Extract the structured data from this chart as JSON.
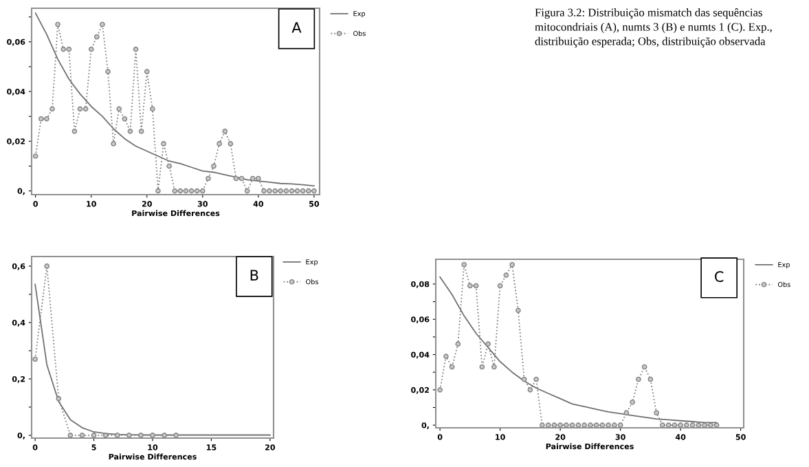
{
  "chart_data": [
    {
      "type": "line",
      "xlabel": "Pairwise Differences",
      "xlim": [
        -0.7,
        51
      ],
      "ylim": [
        -0.0015,
        0.0735
      ],
      "xticks": [
        0,
        10,
        20,
        30,
        40,
        50
      ],
      "yticks": [
        {
          "value": 0,
          "label": "0,"
        },
        {
          "value": 0.01,
          "label": null
        },
        {
          "value": 0.02,
          "label": "0,02"
        },
        {
          "value": 0.03,
          "label": null
        },
        {
          "value": 0.04,
          "label": "0,04"
        },
        {
          "value": 0.05,
          "label": null
        },
        {
          "value": 0.06,
          "label": "0,06"
        },
        {
          "value": 0.07,
          "label": null
        }
      ],
      "grid": false,
      "legend": "right",
      "annotations": [
        "A",
        "Figura 3.2: Distribuição mismatch das sequências mitocondriais (A), numts 3 (B) e numts 1 (C). Exp., distribuição esperada; Obs, distribuição observada"
      ],
      "series": [
        {
          "name": "Exp",
          "color": "#707070",
          "line_style": "solid",
          "marker": "none",
          "x": [
            0,
            2,
            4,
            6,
            8,
            10,
            12,
            14,
            16,
            18,
            20,
            22,
            24,
            26,
            28,
            30,
            32,
            34,
            36,
            38,
            40,
            42,
            44,
            46,
            48,
            50
          ],
          "values": [
            0.0715,
            0.063,
            0.053,
            0.045,
            0.039,
            0.034,
            0.03,
            0.025,
            0.021,
            0.018,
            0.016,
            0.014,
            0.012,
            0.011,
            0.0095,
            0.008,
            0.0075,
            0.0065,
            0.0055,
            0.0045,
            0.004,
            0.0035,
            0.003,
            0.0028,
            0.0025,
            0.002
          ]
        },
        {
          "name": "Obs",
          "color": "#808080",
          "line_style": "dotted",
          "marker": "circle",
          "x": [
            0,
            1,
            2,
            3,
            4,
            5,
            6,
            7,
            8,
            9,
            10,
            11,
            12,
            13,
            14,
            15,
            16,
            17,
            18,
            19,
            20,
            21,
            22,
            23,
            24,
            25,
            26,
            27,
            28,
            29,
            30,
            31,
            32,
            33,
            34,
            35,
            36,
            37,
            38,
            39,
            40,
            41,
            42,
            43,
            44,
            45,
            46,
            47,
            48,
            49,
            50
          ],
          "values": [
            0.014,
            0.029,
            0.029,
            0.033,
            0.067,
            0.057,
            0.057,
            0.024,
            0.033,
            0.033,
            0.057,
            0.062,
            0.067,
            0.048,
            0.019,
            0.033,
            0.029,
            0.024,
            0.057,
            0.024,
            0.048,
            0.033,
            0,
            0.019,
            0.01,
            0,
            0,
            0,
            0,
            0,
            0,
            0.005,
            0.01,
            0.019,
            0.024,
            0.019,
            0.005,
            0.005,
            0,
            0.005,
            0.005,
            0,
            0,
            0,
            0,
            0,
            0,
            0,
            0,
            0,
            0
          ]
        }
      ]
    },
    {
      "type": "line",
      "xlabel": "Pairwise Differences",
      "xlim": [
        -0.3,
        20.3
      ],
      "ylim": [
        -0.01,
        0.634
      ],
      "xticks": [
        0,
        5,
        10,
        15,
        20
      ],
      "yticks": [
        {
          "value": 0,
          "label": "0,"
        },
        {
          "value": 0.1,
          "label": null
        },
        {
          "value": 0.2,
          "label": "0,2"
        },
        {
          "value": 0.3,
          "label": null
        },
        {
          "value": 0.4,
          "label": "0,4"
        },
        {
          "value": 0.5,
          "label": null
        },
        {
          "value": 0.6,
          "label": "0,6"
        }
      ],
      "grid": false,
      "legend": "right",
      "annotations": [
        "B"
      ],
      "series": [
        {
          "name": "Exp",
          "color": "#707070",
          "line_style": "solid",
          "marker": "none",
          "x": [
            0,
            1,
            2,
            3,
            4,
            5,
            6,
            7,
            8,
            10,
            12,
            14,
            16,
            18,
            20
          ],
          "values": [
            0.535,
            0.25,
            0.12,
            0.055,
            0.027,
            0.012,
            0.006,
            0.003,
            0.002,
            0.001,
            0.001,
            0.001,
            0.001,
            0.001,
            0.001
          ]
        },
        {
          "name": "Obs",
          "color": "#808080",
          "line_style": "dotted",
          "marker": "circle",
          "x": [
            0,
            1,
            2,
            3,
            4,
            5,
            6,
            7,
            8,
            9,
            10,
            11,
            12
          ],
          "values": [
            0.27,
            0.6,
            0.13,
            0,
            0,
            0,
            0,
            0,
            0,
            0,
            0,
            0,
            0
          ]
        }
      ]
    },
    {
      "type": "line",
      "xlabel": "Pairwise Differences",
      "xlim": [
        -0.7,
        50.5
      ],
      "ylim": [
        -0.0015,
        0.094
      ],
      "xticks": [
        0,
        10,
        20,
        30,
        40,
        50
      ],
      "yticks": [
        {
          "value": 0,
          "label": "0,"
        },
        {
          "value": 0.01,
          "label": null
        },
        {
          "value": 0.02,
          "label": "0,02"
        },
        {
          "value": 0.03,
          "label": null
        },
        {
          "value": 0.04,
          "label": "0,04"
        },
        {
          "value": 0.05,
          "label": null
        },
        {
          "value": 0.06,
          "label": "0,06"
        },
        {
          "value": 0.07,
          "label": null
        },
        {
          "value": 0.08,
          "label": "0,08"
        }
      ],
      "grid": false,
      "legend": "right",
      "annotations": [
        "C"
      ],
      "series": [
        {
          "name": "Exp",
          "color": "#707070",
          "line_style": "solid",
          "marker": "none",
          "x": [
            0,
            2,
            4,
            6,
            8,
            10,
            12,
            14,
            16,
            18,
            20,
            22,
            24,
            26,
            28,
            30,
            32,
            34,
            36,
            38,
            40,
            42,
            44,
            46
          ],
          "values": [
            0.084,
            0.074,
            0.062,
            0.052,
            0.044,
            0.036,
            0.03,
            0.025,
            0.021,
            0.018,
            0.015,
            0.012,
            0.0105,
            0.009,
            0.0075,
            0.0065,
            0.0055,
            0.0045,
            0.0035,
            0.003,
            0.0025,
            0.002,
            0.0015,
            0.0015
          ]
        },
        {
          "name": "Obs",
          "color": "#808080",
          "line_style": "dotted",
          "marker": "circle",
          "x": [
            0,
            1,
            2,
            3,
            4,
            5,
            6,
            7,
            8,
            9,
            10,
            11,
            12,
            13,
            14,
            15,
            16,
            17,
            18,
            19,
            20,
            21,
            22,
            23,
            24,
            25,
            26,
            27,
            28,
            29,
            30,
            31,
            32,
            33,
            34,
            35,
            36,
            37,
            38,
            39,
            40,
            41,
            42,
            43,
            44,
            45,
            46
          ],
          "values": [
            0.02,
            0.039,
            0.033,
            0.046,
            0.091,
            0.079,
            0.079,
            0.033,
            0.046,
            0.033,
            0.079,
            0.085,
            0.091,
            0.065,
            0.026,
            0.02,
            0.026,
            0,
            0,
            0,
            0,
            0,
            0,
            0,
            0,
            0,
            0,
            0,
            0,
            0,
            0,
            0.007,
            0.013,
            0.026,
            0.033,
            0.026,
            0.007,
            0,
            0,
            0,
            0,
            0,
            0,
            0,
            0,
            0,
            0
          ]
        }
      ]
    }
  ]
}
